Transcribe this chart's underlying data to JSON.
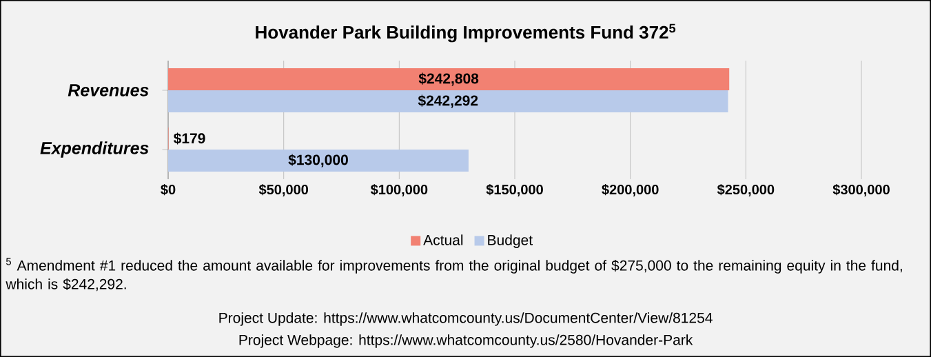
{
  "chart_data": {
    "type": "bar",
    "orientation": "horizontal",
    "title": "Hovander Park Building Improvements Fund 372$^{5}$",
    "categories": [
      "Revenues",
      "Expenditures"
    ],
    "series": [
      {
        "name": "Actual",
        "color": "#f28172",
        "values": [
          242808,
          179
        ],
        "value_labels": [
          "$242,808",
          "$179"
        ]
      },
      {
        "name": "Budget",
        "color": "#b8caea",
        "values": [
          242292,
          130000
        ],
        "value_labels": [
          "$242,292",
          "$130,000"
        ]
      }
    ],
    "xlim": [
      0,
      300000
    ],
    "xticks": [
      {
        "value": 0,
        "label": "$0"
      },
      {
        "value": 50000,
        "label": "$50,000"
      },
      {
        "value": 100000,
        "label": "$100,000"
      },
      {
        "value": 150000,
        "label": "$150,000"
      },
      {
        "value": 200000,
        "label": "$200,000"
      },
      {
        "value": 250000,
        "label": "$250,000"
      },
      {
        "value": 300000,
        "label": "$300,000"
      }
    ],
    "grid": "x",
    "legend": "bottom",
    "annotations": [
      "$^{5}$ Amendment #1 reduced the amount available for improvements from the original budget of $275,000 to the remaining equity in the fund, which is $242,292.",
      "Project Update: https://www.whatcomcounty.us/DocumentCenter/View/81254",
      "Project Webpage: https://www.whatcomcounty.us/2580/Hovander-Park"
    ]
  }
}
